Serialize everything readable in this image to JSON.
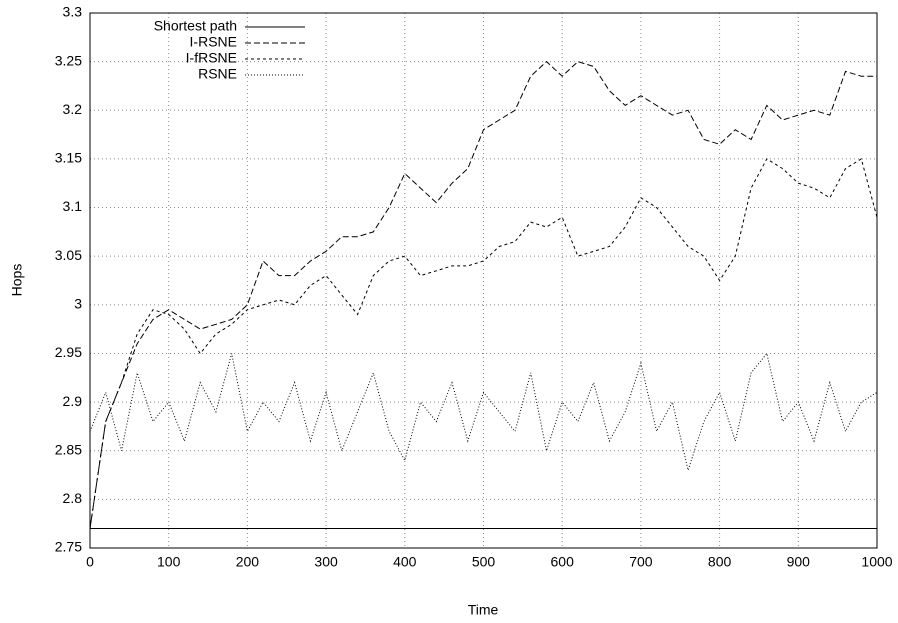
{
  "chart_data": {
    "type": "line",
    "xlabel": "Time",
    "ylabel": "Hops",
    "x": [
      0,
      20,
      40,
      60,
      80,
      100,
      120,
      140,
      160,
      180,
      200,
      220,
      240,
      260,
      280,
      300,
      320,
      340,
      360,
      380,
      400,
      420,
      440,
      460,
      480,
      500,
      520,
      540,
      560,
      580,
      600,
      620,
      640,
      660,
      680,
      700,
      720,
      740,
      760,
      780,
      800,
      820,
      840,
      860,
      880,
      900,
      920,
      940,
      960,
      980,
      1000
    ],
    "series": [
      {
        "name": "Shortest path",
        "color": "#000000",
        "dash": "none",
        "values": [
          2.77,
          2.77,
          2.77,
          2.77,
          2.77,
          2.77,
          2.77,
          2.77,
          2.77,
          2.77,
          2.77,
          2.77,
          2.77,
          2.77,
          2.77,
          2.77,
          2.77,
          2.77,
          2.77,
          2.77,
          2.77,
          2.77,
          2.77,
          2.77,
          2.77,
          2.77,
          2.77,
          2.77,
          2.77,
          2.77,
          2.77,
          2.77,
          2.77,
          2.77,
          2.77,
          2.77,
          2.77,
          2.77,
          2.77,
          2.77,
          2.77,
          2.77,
          2.77,
          2.77,
          2.77,
          2.77,
          2.77,
          2.77,
          2.77,
          2.77,
          2.77
        ]
      },
      {
        "name": "I-RSNE",
        "color": "#000000",
        "dash": "6,3",
        "values": [
          2.77,
          2.88,
          2.92,
          2.96,
          2.985,
          2.995,
          2.985,
          2.975,
          2.98,
          2.985,
          3.0,
          3.045,
          3.03,
          3.03,
          3.045,
          3.055,
          3.07,
          3.07,
          3.075,
          3.1,
          3.135,
          3.12,
          3.105,
          3.125,
          3.14,
          3.18,
          3.19,
          3.2,
          3.235,
          3.25,
          3.235,
          3.25,
          3.245,
          3.22,
          3.205,
          3.215,
          3.205,
          3.195,
          3.2,
          3.17,
          3.165,
          3.18,
          3.17,
          3.205,
          3.19,
          3.195,
          3.2,
          3.195,
          3.24,
          3.235,
          3.235
        ]
      },
      {
        "name": "I-fRSNE",
        "color": "#000000",
        "dash": "3,3",
        "values": [
          2.77,
          2.88,
          2.92,
          2.97,
          2.995,
          2.99,
          2.975,
          2.95,
          2.97,
          2.98,
          2.995,
          3.0,
          3.005,
          3.0,
          3.02,
          3.03,
          3.01,
          2.99,
          3.03,
          3.045,
          3.05,
          3.03,
          3.035,
          3.04,
          3.04,
          3.045,
          3.06,
          3.065,
          3.085,
          3.08,
          3.09,
          3.05,
          3.055,
          3.06,
          3.08,
          3.11,
          3.1,
          3.08,
          3.06,
          3.05,
          3.025,
          3.05,
          3.12,
          3.15,
          3.14,
          3.125,
          3.12,
          3.11,
          3.14,
          3.15,
          3.09
        ]
      },
      {
        "name": "RSNE",
        "color": "#000000",
        "dash": "1,2",
        "values": [
          2.87,
          2.91,
          2.85,
          2.93,
          2.88,
          2.9,
          2.86,
          2.92,
          2.89,
          2.95,
          2.87,
          2.9,
          2.88,
          2.92,
          2.86,
          2.91,
          2.85,
          2.89,
          2.93,
          2.87,
          2.84,
          2.9,
          2.88,
          2.92,
          2.86,
          2.91,
          2.89,
          2.87,
          2.93,
          2.85,
          2.9,
          2.88,
          2.92,
          2.86,
          2.89,
          2.94,
          2.87,
          2.9,
          2.83,
          2.88,
          2.91,
          2.86,
          2.93,
          2.95,
          2.88,
          2.9,
          2.86,
          2.92,
          2.87,
          2.9,
          2.91
        ]
      }
    ],
    "xlim": [
      0,
      1000
    ],
    "xticks": [
      0,
      100,
      200,
      300,
      400,
      500,
      600,
      700,
      800,
      900,
      1000
    ],
    "ylim": [
      2.75,
      3.3
    ],
    "yticks": [
      2.75,
      2.8,
      2.85,
      2.9,
      2.95,
      3,
      3.05,
      3.1,
      3.15,
      3.2,
      3.25,
      3.3
    ],
    "grid": true,
    "legend": "top-left"
  }
}
